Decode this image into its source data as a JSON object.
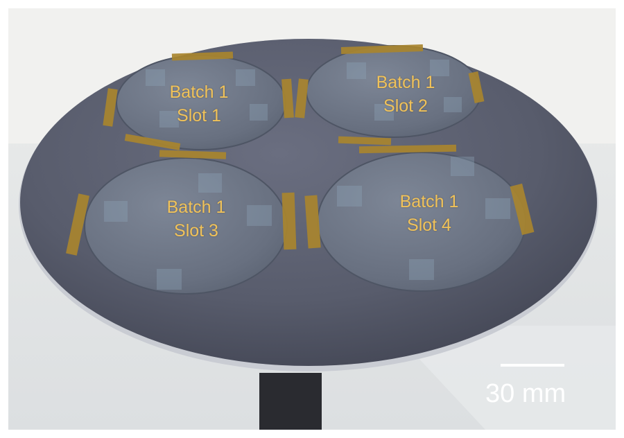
{
  "image": {
    "scene": "carrier-wafer-with-four-samples",
    "colors": {
      "label_text": "#f0c25a",
      "scale_bar": "#ffffff",
      "carrier_wafer": "#5a5e6e",
      "sample_wafer": "#6e7686",
      "kapton_tape": "#a9852e",
      "background": "#e9ebec"
    }
  },
  "samples": [
    {
      "line1": "Batch 1",
      "line2": "Slot 1"
    },
    {
      "line1": "Batch 1",
      "line2": "Slot 2"
    },
    {
      "line1": "Batch 1",
      "line2": "Slot 3"
    },
    {
      "line1": "Batch 1",
      "line2": "Slot 4"
    }
  ],
  "scale_bar": {
    "label": "30 mm"
  }
}
